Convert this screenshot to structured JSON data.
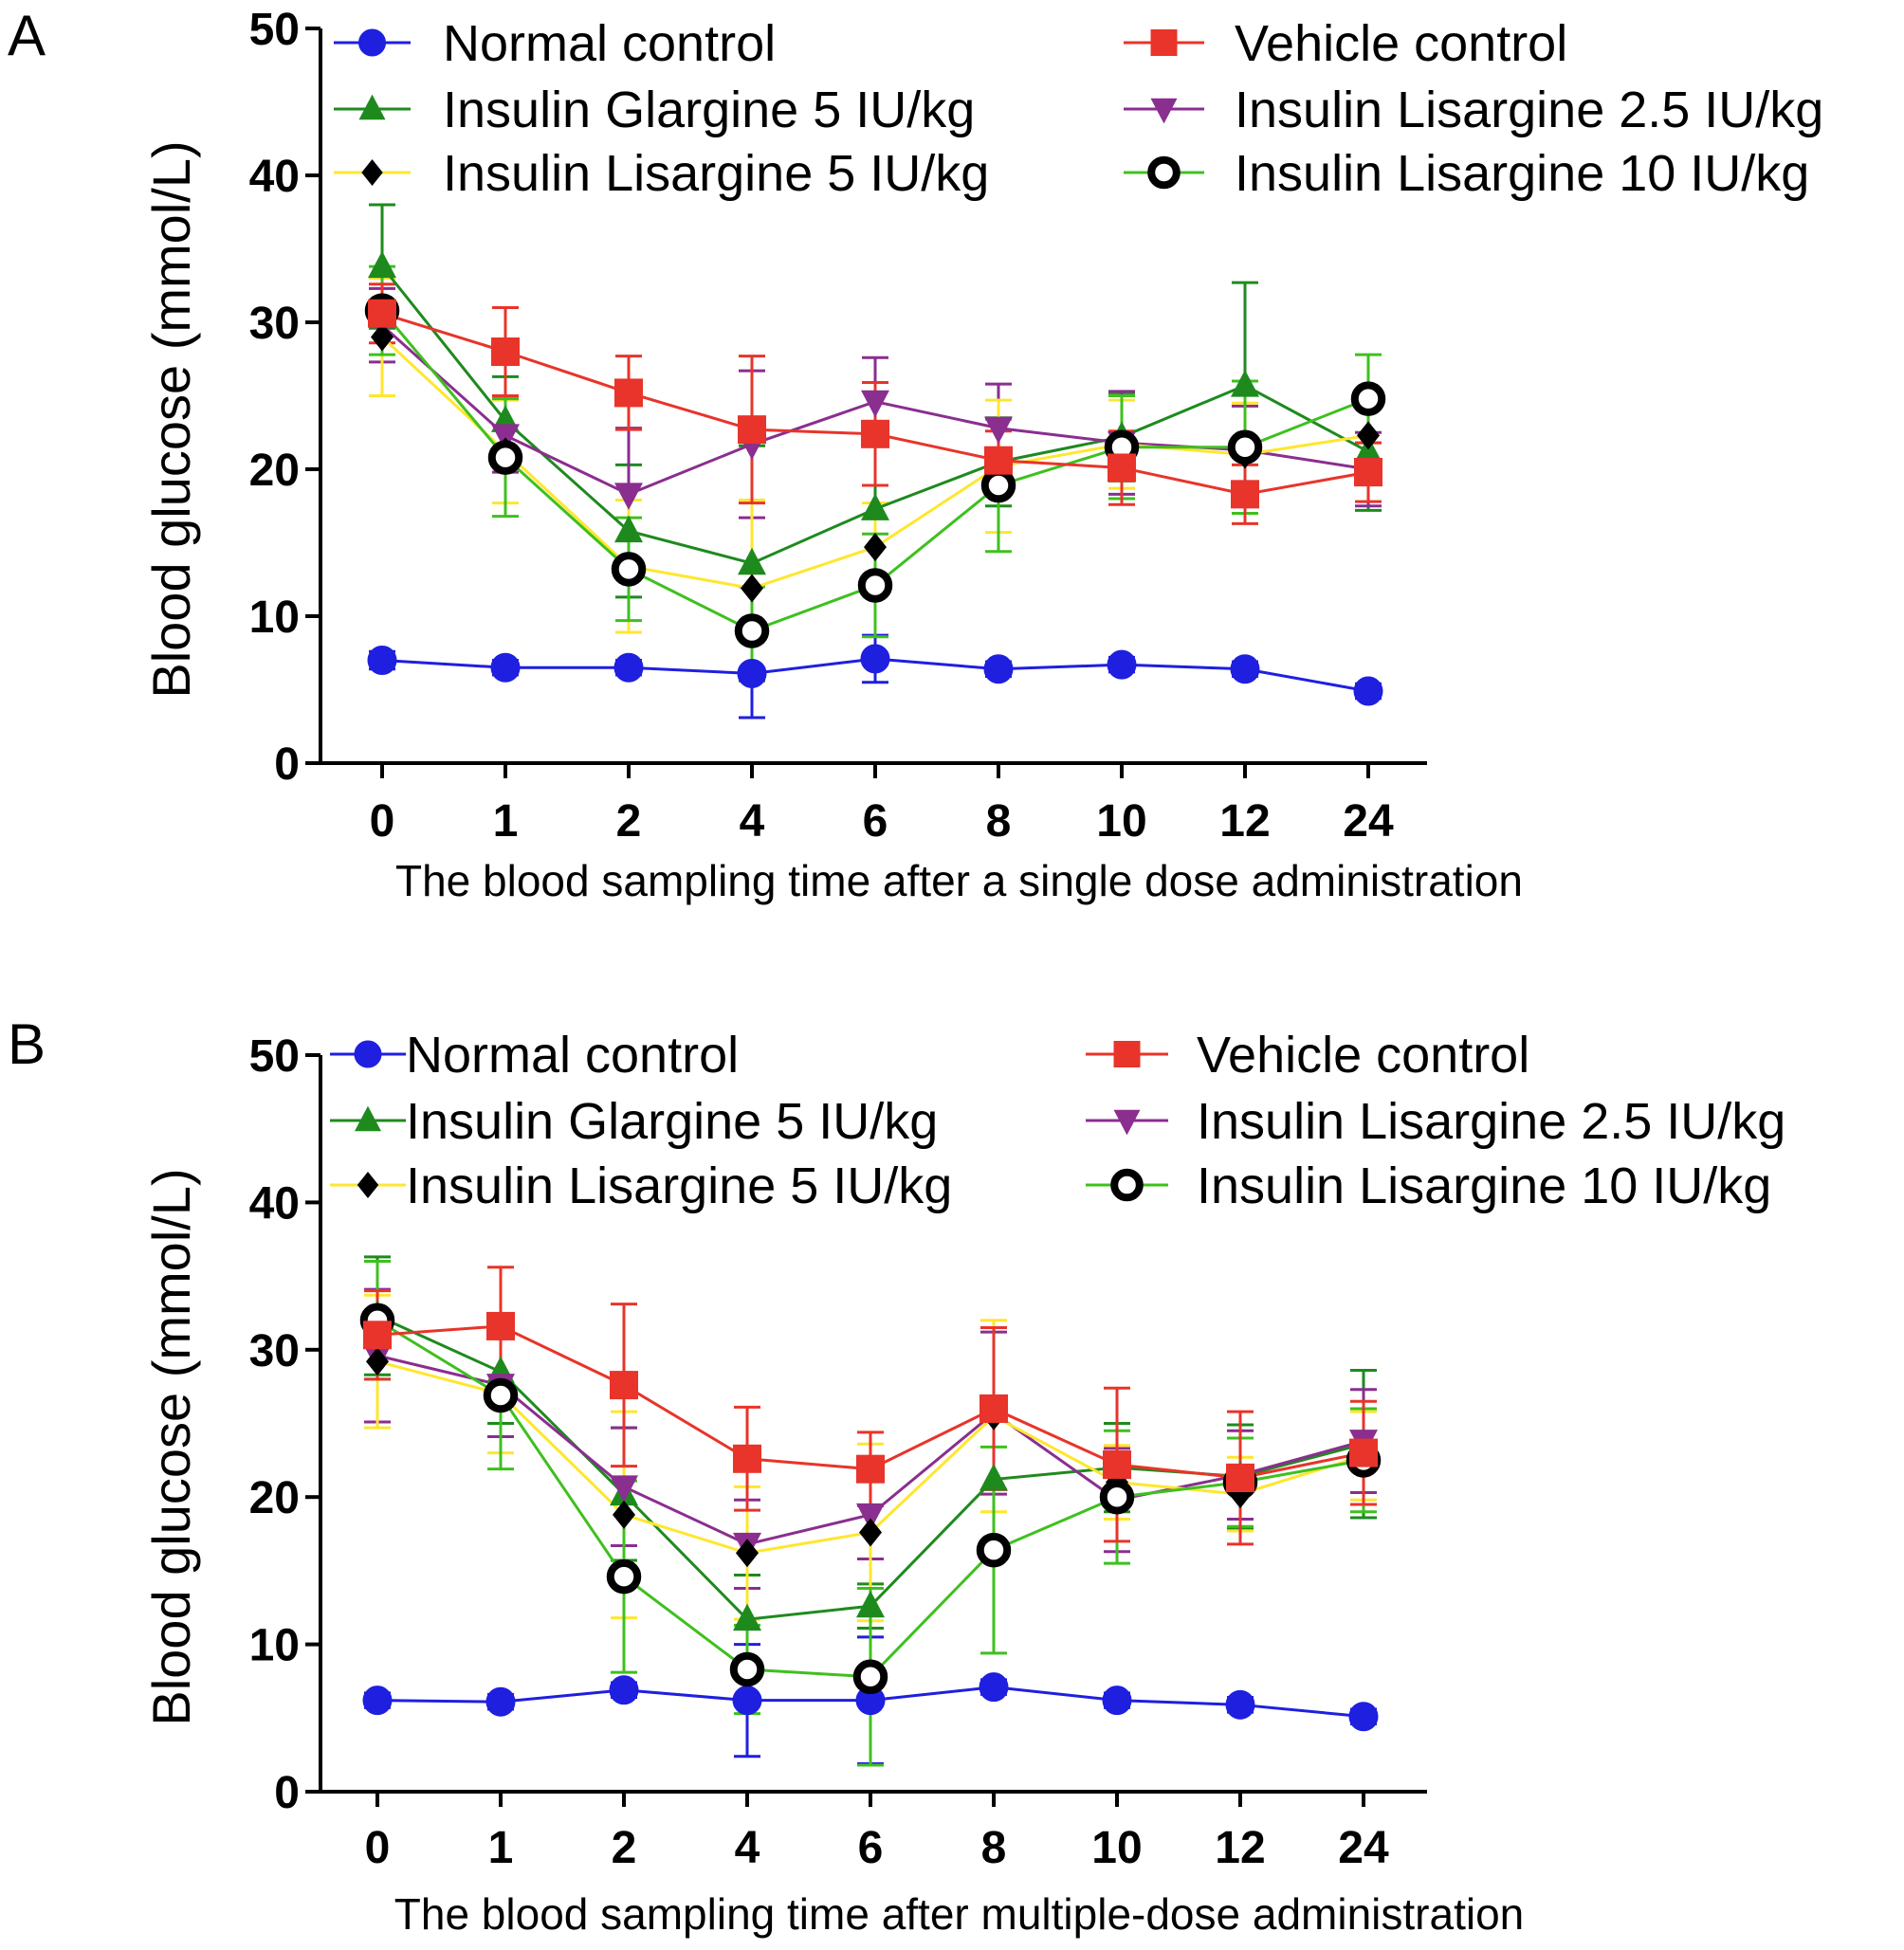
{
  "chart_data": [
    {
      "type": "line",
      "panel_label": "A",
      "categories": [
        "0",
        "1",
        "2",
        "4",
        "6",
        "8",
        "10",
        "12",
        "24"
      ],
      "xlabel": "The blood sampling time after a single dose administration",
      "ylabel": "Blood glucose  (mmol/L)",
      "ylim": [
        0,
        50
      ],
      "yticks": [
        "0",
        "10",
        "20",
        "30",
        "40",
        "50"
      ],
      "legend_position": "top",
      "series": [
        {
          "name": "Normal control",
          "color": "#1f1fe0",
          "marker": "circle",
          "values": [
            7.0,
            6.5,
            6.5,
            6.1,
            7.1,
            6.4,
            6.7,
            6.4,
            4.9
          ],
          "errors": [
            0.6,
            0.5,
            0.5,
            3.0,
            1.6,
            0.5,
            0.5,
            0.5,
            0.5
          ]
        },
        {
          "name": "Vehicle control",
          "color": "#e8342a",
          "marker": "square",
          "values": [
            30.6,
            28.0,
            25.2,
            22.7,
            22.4,
            20.6,
            20.1,
            18.3,
            19.8
          ],
          "errors": [
            2.0,
            3.0,
            2.5,
            5.0,
            3.5,
            2.0,
            2.5,
            2.0,
            2.0
          ]
        },
        {
          "name": "Insulin Glargine 5 IU/kg",
          "color": "#1e8a1e",
          "marker": "triangle-up",
          "values": [
            33.8,
            23.3,
            15.8,
            13.6,
            17.3,
            20.5,
            22.2,
            25.7,
            21.2
          ],
          "errors": [
            4.2,
            3.0,
            4.5,
            8.0,
            5.0,
            3.0,
            3.0,
            7.0,
            4.0
          ]
        },
        {
          "name": "Insulin Lisargine 2.5 IU/kg",
          "color": "#8a2e8f",
          "marker": "triangle-down",
          "values": [
            29.8,
            22.3,
            18.3,
            21.7,
            24.6,
            22.8,
            21.8,
            21.3,
            20.0
          ],
          "errors": [
            2.5,
            2.5,
            4.5,
            5.0,
            3.0,
            3.0,
            3.5,
            3.0,
            2.5
          ]
        },
        {
          "name": "Insulin Lisargine 5 IU/kg",
          "color": "#ffe62e",
          "marker": "diamond",
          "values": [
            29.0,
            21.2,
            13.4,
            11.9,
            14.7,
            20.2,
            21.7,
            21.0,
            22.3
          ],
          "errors": [
            4.0,
            3.5,
            4.5,
            6.0,
            3.0,
            4.5,
            3.0,
            3.5,
            3.0
          ]
        },
        {
          "name": "Insulin Lisargine 10 IU/kg",
          "color": "#3ec01e",
          "marker": "open-circle",
          "values": [
            30.8,
            20.8,
            13.2,
            9.0,
            12.1,
            18.9,
            21.5,
            21.5,
            24.8
          ],
          "errors": [
            3.0,
            4.0,
            3.5,
            3.0,
            3.5,
            4.5,
            3.5,
            4.5,
            3.0
          ]
        }
      ]
    },
    {
      "type": "line",
      "panel_label": "B",
      "categories": [
        "0",
        "1",
        "2",
        "4",
        "6",
        "8",
        "10",
        "12",
        "24"
      ],
      "xlabel": "The blood sampling time after multiple-dose administration",
      "ylabel": "Blood glucose  (mmol/L)",
      "ylim": [
        0,
        50
      ],
      "yticks": [
        "0",
        "10",
        "20",
        "30",
        "40",
        "50"
      ],
      "legend_position": "top",
      "series": [
        {
          "name": "Normal control",
          "color": "#1f1fe0",
          "marker": "circle",
          "values": [
            6.2,
            6.1,
            6.9,
            6.2,
            6.2,
            7.1,
            6.2,
            5.9,
            5.1
          ],
          "errors": [
            0.5,
            0.5,
            0.5,
            3.8,
            4.3,
            0.5,
            0.5,
            0.5,
            0.5
          ]
        },
        {
          "name": "Vehicle control",
          "color": "#e8342a",
          "marker": "square",
          "values": [
            31.0,
            31.6,
            27.6,
            22.6,
            21.9,
            26.0,
            22.2,
            21.3,
            23.0
          ],
          "errors": [
            3.0,
            4.0,
            5.5,
            3.5,
            2.5,
            5.5,
            5.2,
            4.5,
            3.5
          ]
        },
        {
          "name": "Insulin Glargine 5 IU/kg",
          "color": "#1e8a1e",
          "marker": "triangle-up",
          "values": [
            32.3,
            28.5,
            20.2,
            11.7,
            12.6,
            21.2,
            22.0,
            21.4,
            23.6
          ],
          "errors": [
            4.0,
            3.5,
            4.5,
            3.0,
            1.5,
            4.5,
            3.0,
            3.5,
            5.0
          ]
        },
        {
          "name": "Insulin Lisargine 2.5 IU/kg",
          "color": "#8a2e8f",
          "marker": "triangle-down",
          "values": [
            29.6,
            27.6,
            20.7,
            16.8,
            18.8,
            25.7,
            19.8,
            21.5,
            23.8
          ],
          "errors": [
            4.5,
            3.5,
            4.0,
            3.0,
            3.0,
            5.5,
            3.5,
            3.0,
            3.5
          ]
        },
        {
          "name": "Insulin Lisargine 5 IU/kg",
          "color": "#ffe62e",
          "marker": "diamond",
          "values": [
            29.2,
            27.0,
            18.8,
            16.2,
            17.6,
            25.5,
            21.0,
            20.2,
            22.8
          ],
          "errors": [
            4.5,
            4.0,
            7.0,
            4.5,
            6.0,
            6.5,
            2.5,
            2.5,
            3.0
          ]
        },
        {
          "name": "Insulin Lisargine 10 IU/kg",
          "color": "#3ec01e",
          "marker": "open-circle",
          "values": [
            32.0,
            26.9,
            14.6,
            8.3,
            7.8,
            16.4,
            20.0,
            21.0,
            22.5
          ],
          "errors": [
            4.0,
            5.0,
            6.5,
            3.0,
            6.0,
            7.0,
            4.5,
            3.0,
            3.5
          ]
        }
      ]
    }
  ]
}
